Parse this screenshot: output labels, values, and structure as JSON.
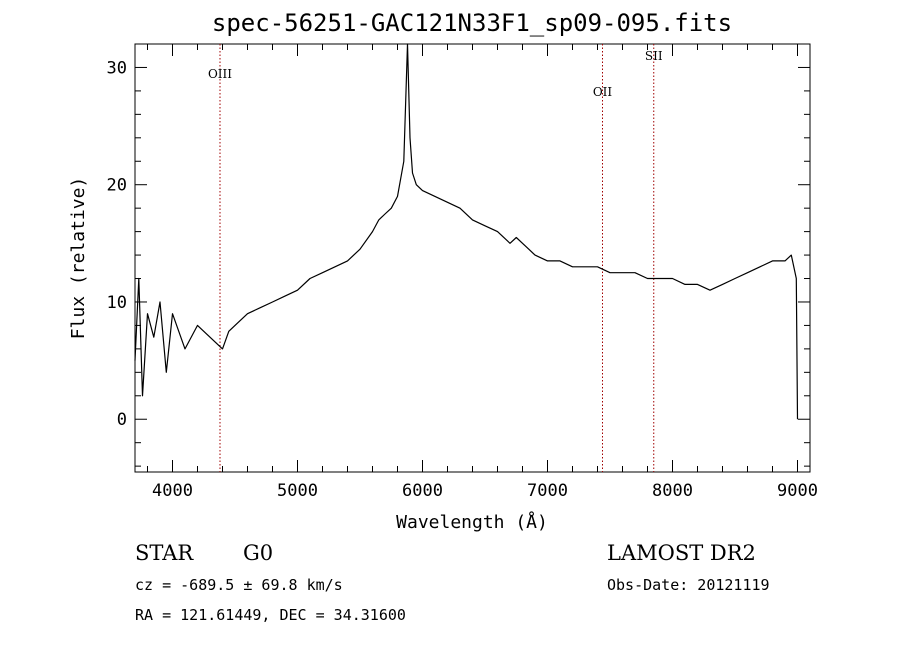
{
  "chart_data": {
    "type": "line",
    "title": "spec-56251-GAC121N33F1_sp09-095.fits",
    "xlabel": "Wavelength (Å)",
    "ylabel": "Flux (relative)",
    "xlim": [
      3700,
      9100
    ],
    "ylim": [
      -4.5,
      32
    ],
    "xticks": [
      4000,
      5000,
      6000,
      7000,
      8000,
      9000
    ],
    "xtick_labels": [
      "4000",
      "5000",
      "6000",
      "7000",
      "8000",
      "9000"
    ],
    "yticks": [
      0,
      10,
      20,
      30
    ],
    "ytick_labels": [
      "0",
      "10",
      "20",
      "30"
    ],
    "grid": false,
    "series": [
      {
        "x": [
          3700,
          3730,
          3760,
          3800,
          3850,
          3900,
          3950,
          4000,
          4100,
          4200,
          4300,
          4400,
          4450,
          4500,
          4600,
          4700,
          4800,
          4900,
          5000,
          5100,
          5200,
          5300,
          5400,
          5500,
          5600,
          5650,
          5700,
          5750,
          5800,
          5850,
          5880,
          5900,
          5920,
          5950,
          6000,
          6100,
          6200,
          6300,
          6400,
          6500,
          6600,
          6700,
          6750,
          6800,
          6850,
          6900,
          7000,
          7100,
          7200,
          7300,
          7400,
          7500,
          7600,
          7700,
          7800,
          7900,
          8000,
          8100,
          8200,
          8300,
          8400,
          8500,
          8600,
          8700,
          8800,
          8900,
          8950,
          8990,
          9000
        ],
        "y": [
          5,
          12,
          2,
          9,
          7,
          10,
          4,
          9,
          6,
          8,
          7,
          6,
          7.5,
          8,
          9,
          9.5,
          10,
          10.5,
          11,
          12,
          12.5,
          13,
          13.5,
          14.5,
          16,
          17,
          17.5,
          18,
          19,
          22,
          32,
          24,
          21,
          20,
          19.5,
          19,
          18.5,
          18,
          17,
          16.5,
          16,
          15,
          15.5,
          15,
          14.5,
          14,
          13.5,
          13.5,
          13,
          13,
          13,
          12.5,
          12.5,
          12.5,
          12,
          12,
          12,
          11.5,
          11.5,
          11,
          11.5,
          12,
          12.5,
          13,
          13.5,
          13.5,
          14,
          12,
          0
        ]
      }
    ],
    "emission_lines": [
      {
        "name": "OIII",
        "x": 4380
      },
      {
        "name": "OII",
        "x": 7440
      },
      {
        "name": "SII",
        "x": 7850
      }
    ]
  },
  "info": {
    "object_type": "STAR",
    "subclass": "G0",
    "survey": "LAMOST DR2",
    "cz": "cz = -689.5 ± 69.8 km/s",
    "obs_date": "Obs-Date: 20121119",
    "coords": "RA = 121.61449, DEC =  34.31600"
  }
}
